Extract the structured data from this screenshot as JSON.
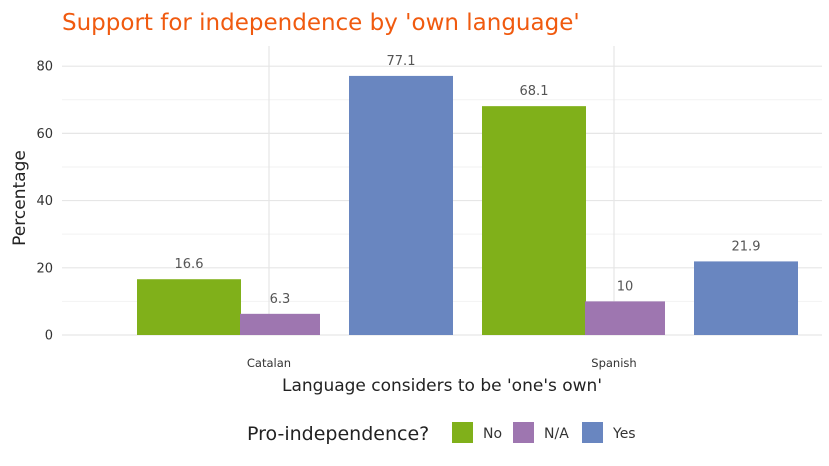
{
  "chart_data": {
    "type": "bar",
    "title": "Support for independence by 'own language'",
    "title_color": "#f05a0f",
    "xlabel": "Language considers to be 'one's own'",
    "ylabel": "Percentage",
    "categories": [
      "Catalan",
      "Spanish"
    ],
    "ylim": [
      0,
      86
    ],
    "yticks": [
      0,
      20,
      40,
      60,
      80
    ],
    "grid": true,
    "legend": {
      "title": "Pro-independence?",
      "placement": "bottom"
    },
    "series": [
      {
        "name": "No",
        "color": "#80b01a",
        "values": [
          16.6,
          68.1
        ],
        "labels": [
          "16.6",
          "68.1"
        ]
      },
      {
        "name": "N/A",
        "color": "#9e76b0",
        "values": [
          6.3,
          10
        ],
        "labels": [
          "6.3",
          "10"
        ]
      },
      {
        "name": "Yes",
        "color": "#6986c0",
        "values": [
          77.1,
          21.9
        ],
        "labels": [
          "77.1",
          "21.9"
        ]
      }
    ]
  }
}
